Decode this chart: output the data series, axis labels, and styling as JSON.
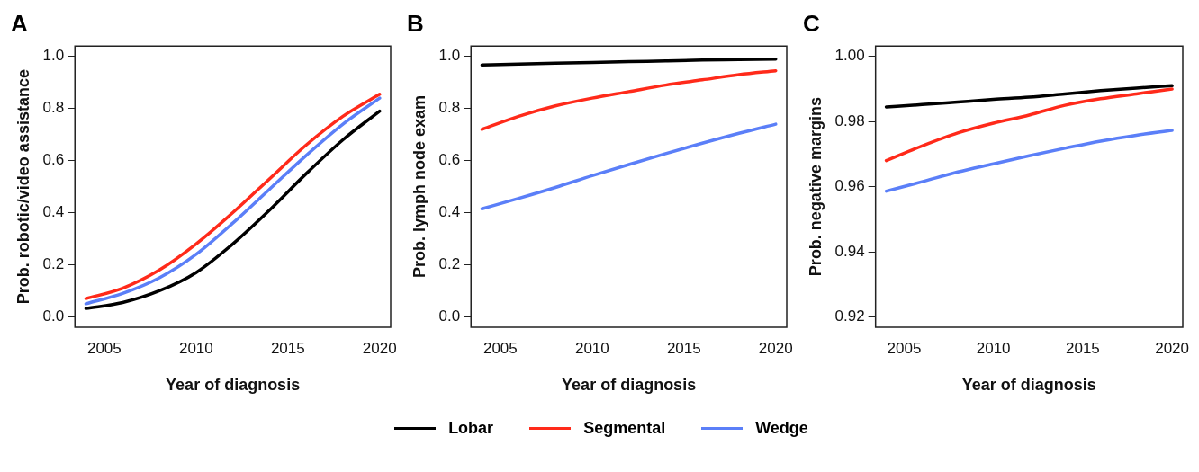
{
  "chart_data": [
    {
      "type": "line",
      "title": "A",
      "xlabel": "Year of diagnosis",
      "ylabel": "Prob. robotic/video assistance",
      "x": [
        2004,
        2006,
        2008,
        2010,
        2012,
        2014,
        2016,
        2018,
        2020
      ],
      "xlim": [
        2003.4,
        2020.6
      ],
      "xticks": [
        2005,
        2010,
        2015,
        2020
      ],
      "ylim": [
        -0.04,
        1.04
      ],
      "yticks": [
        {
          "value": 0,
          "label": "0.0"
        },
        {
          "value": 0.2,
          "label": "0.2"
        },
        {
          "value": 0.4,
          "label": "0.4"
        },
        {
          "value": 0.6,
          "label": "0.6"
        },
        {
          "value": 0.8,
          "label": "0.8"
        },
        {
          "value": 1,
          "label": "1.0"
        }
      ],
      "grid": false,
      "legend": "bottom",
      "marker": "none",
      "line_style": "solid",
      "series": [
        {
          "name": "Lobar",
          "color": "#000000",
          "values": [
            0.032,
            0.055,
            0.1,
            0.17,
            0.28,
            0.41,
            0.55,
            0.68,
            0.79
          ]
        },
        {
          "name": "Segmental",
          "color": "#ff2a1a",
          "values": [
            0.07,
            0.11,
            0.18,
            0.28,
            0.4,
            0.53,
            0.66,
            0.77,
            0.855
          ]
        },
        {
          "name": "Wedge",
          "color": "#5b7ff8",
          "values": [
            0.05,
            0.09,
            0.15,
            0.24,
            0.36,
            0.49,
            0.62,
            0.74,
            0.84
          ]
        }
      ]
    },
    {
      "type": "line",
      "title": "B",
      "xlabel": "Year of diagnosis",
      "ylabel": "Prob. lymph node exam",
      "x": [
        2004,
        2006,
        2008,
        2010,
        2012,
        2014,
        2016,
        2018,
        2020
      ],
      "xlim": [
        2003.4,
        2020.6
      ],
      "xticks": [
        2005,
        2010,
        2015,
        2020
      ],
      "ylim": [
        -0.04,
        1.04
      ],
      "yticks": [
        {
          "value": 0,
          "label": "0.0"
        },
        {
          "value": 0.2,
          "label": "0.2"
        },
        {
          "value": 0.4,
          "label": "0.4"
        },
        {
          "value": 0.6,
          "label": "0.6"
        },
        {
          "value": 0.8,
          "label": "0.8"
        },
        {
          "value": 1,
          "label": "1.0"
        }
      ],
      "grid": false,
      "marker": "none",
      "line_style": "solid",
      "series": [
        {
          "color": "#000000",
          "values": [
            0.967,
            0.971,
            0.974,
            0.977,
            0.98,
            0.983,
            0.986,
            0.988,
            0.99
          ]
        },
        {
          "color": "#ff2a1a",
          "values": [
            0.72,
            0.77,
            0.81,
            0.84,
            0.865,
            0.89,
            0.91,
            0.93,
            0.945
          ]
        },
        {
          "color": "#5b7ff8",
          "values": [
            0.415,
            0.455,
            0.497,
            0.542,
            0.585,
            0.627,
            0.667,
            0.705,
            0.74
          ]
        }
      ]
    },
    {
      "type": "line",
      "title": "C",
      "xlabel": "Year of diagnosis",
      "ylabel": "Prob. negative margins",
      "x": [
        2004,
        2006,
        2008,
        2010,
        2012,
        2014,
        2016,
        2018,
        2020
      ],
      "xlim": [
        2003.4,
        2020.6
      ],
      "xticks": [
        2005,
        2010,
        2015,
        2020
      ],
      "ylim": [
        0.9168,
        1.0032
      ],
      "yticks": [
        {
          "value": 0.92,
          "label": "0.92"
        },
        {
          "value": 0.94,
          "label": "0.94"
        },
        {
          "value": 0.96,
          "label": "0.96"
        },
        {
          "value": 0.98,
          "label": "0.98"
        },
        {
          "value": 1.0,
          "label": "1.00"
        }
      ],
      "grid": false,
      "marker": "none",
      "line_style": "solid",
      "series": [
        {
          "color": "#000000",
          "values": [
            0.9845,
            0.9852,
            0.986,
            0.9868,
            0.9875,
            0.9885,
            0.9895,
            0.9903,
            0.991
          ]
        },
        {
          "color": "#ff2a1a",
          "values": [
            0.968,
            0.9725,
            0.9765,
            0.9795,
            0.982,
            0.985,
            0.987,
            0.9885,
            0.99
          ]
        },
        {
          "color": "#5b7ff8",
          "values": [
            0.9586,
            0.9615,
            0.9645,
            0.967,
            0.9695,
            0.9718,
            0.974,
            0.9758,
            0.9773
          ]
        }
      ]
    }
  ]
}
